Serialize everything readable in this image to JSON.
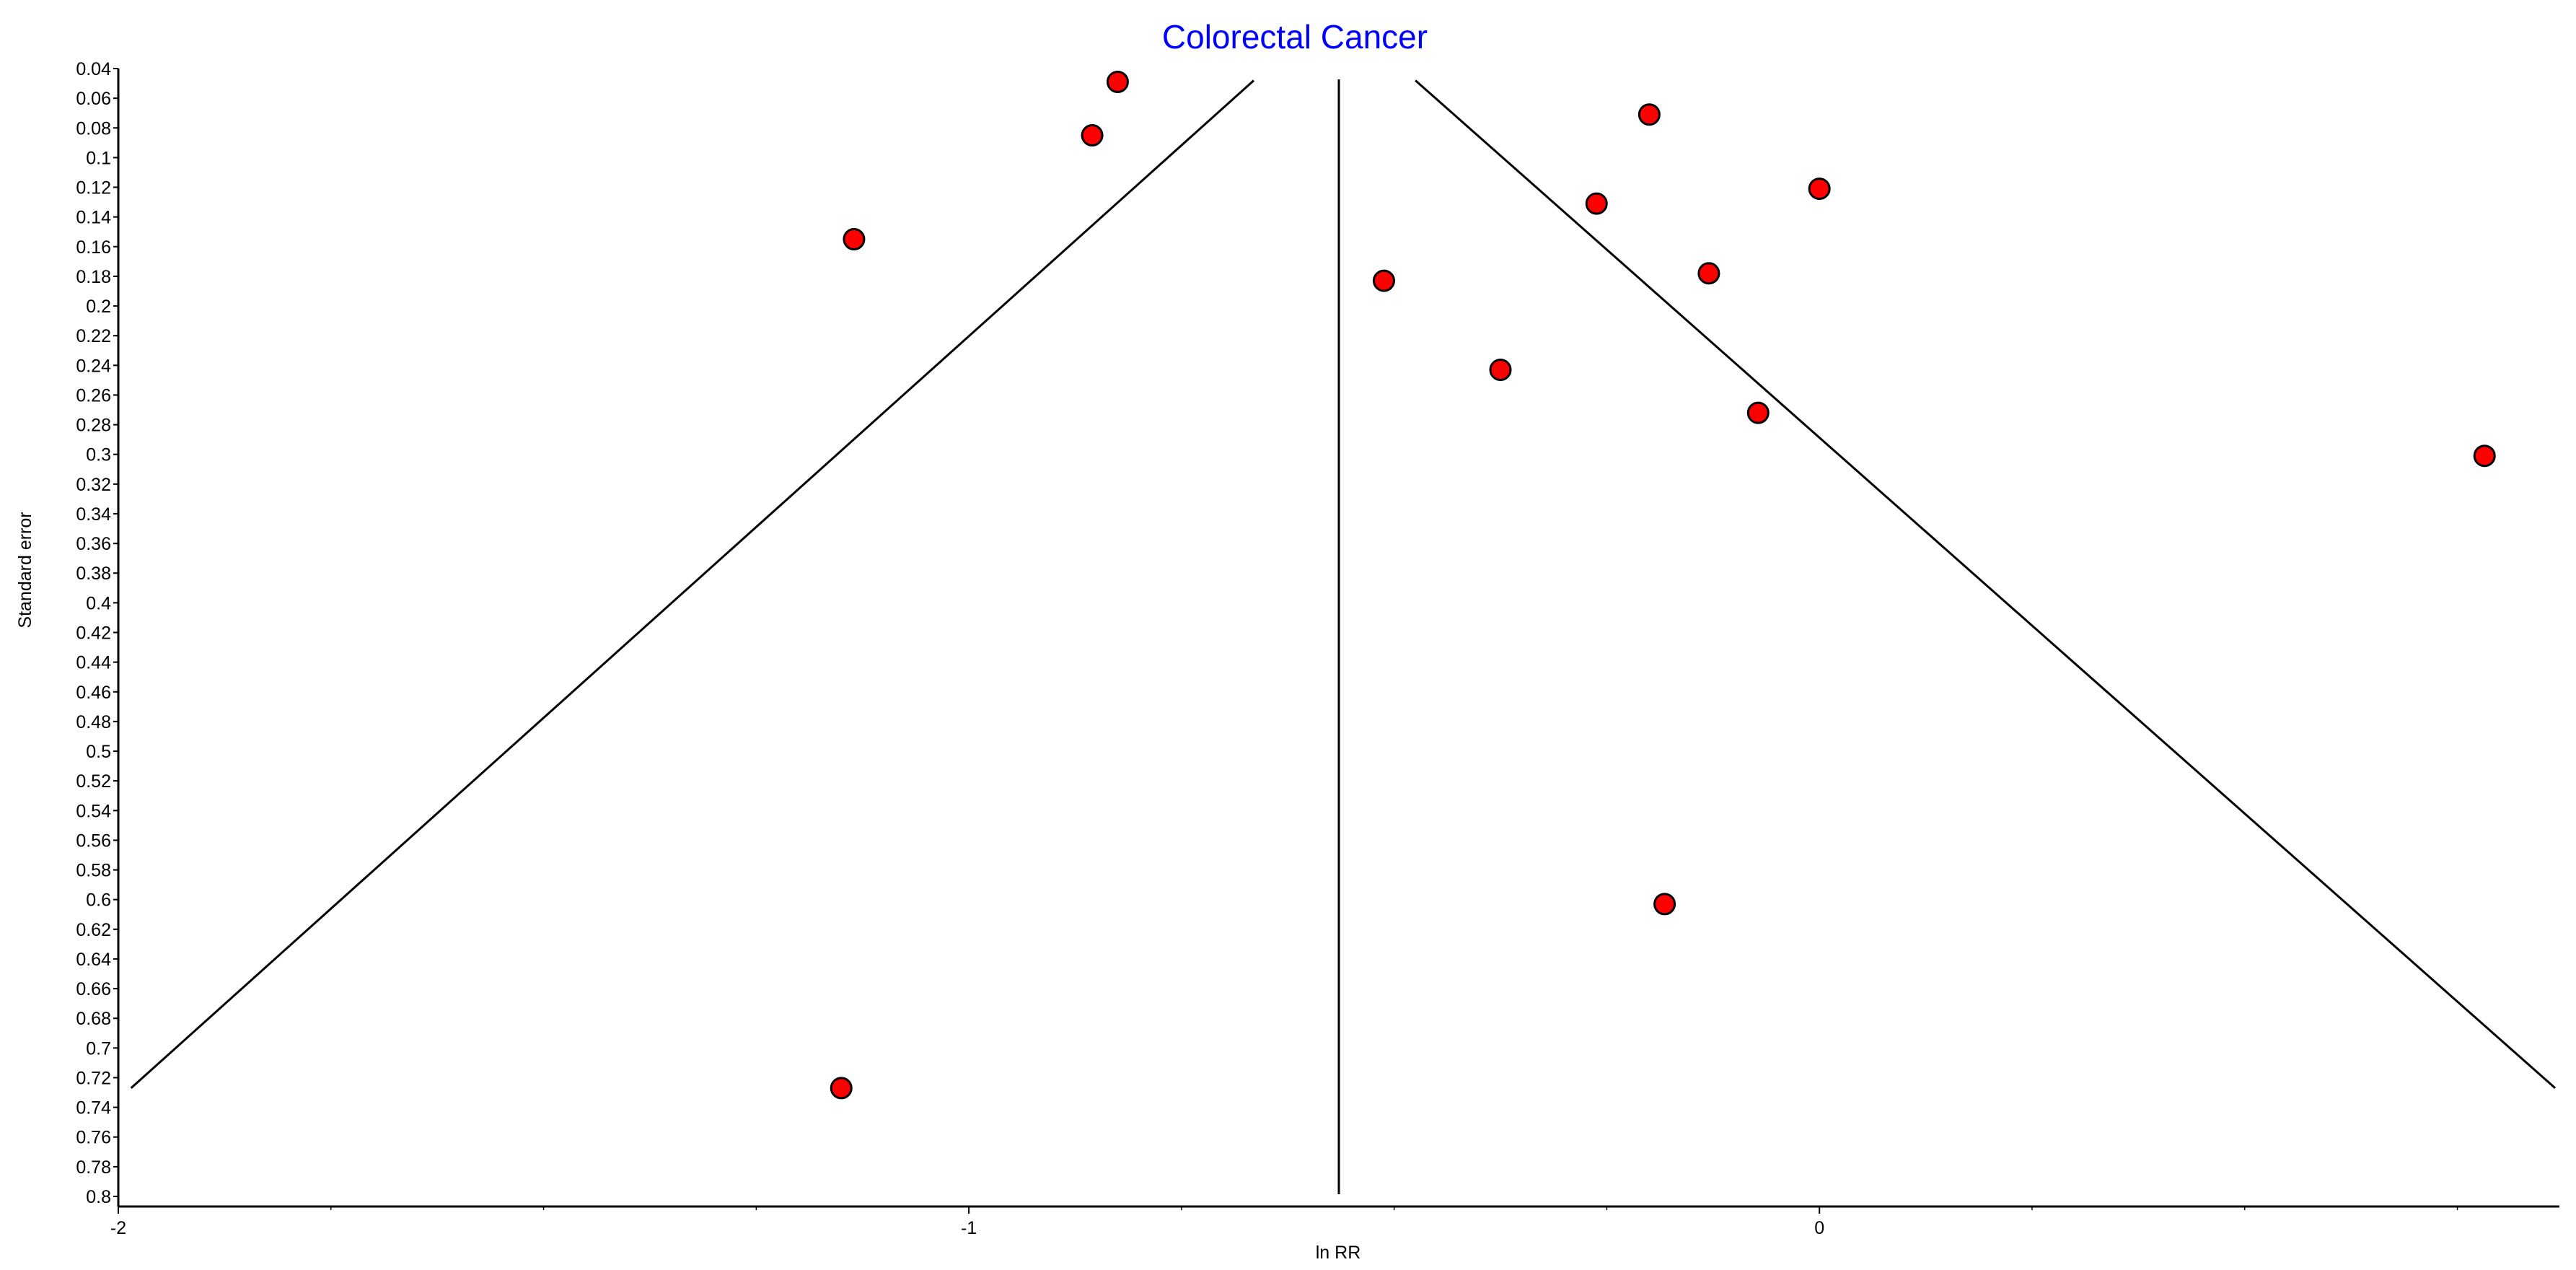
{
  "chart_data": {
    "type": "scatter",
    "title": "Colorectal Cancer",
    "xlabel": "ln RR",
    "ylabel": "Standard error",
    "xlim": [
      -2.0,
      0.87
    ],
    "ylim": [
      0.04,
      0.8
    ],
    "y_inverted": true,
    "grid": false,
    "x_tick_labels": [
      "-2",
      "-1",
      "0"
    ],
    "y_tick_labels": [
      "0.04",
      "0.06",
      "0.08",
      "0.1",
      "0.12",
      "0.14",
      "0.16",
      "0.18",
      "0.2",
      "0.22",
      "0.24",
      "0.26",
      "0.28",
      "0.3",
      "0.32",
      "0.34",
      "0.36",
      "0.38",
      "0.4",
      "0.42",
      "0.44",
      "0.46",
      "0.48",
      "0.5",
      "0.52",
      "0.54",
      "0.56",
      "0.58",
      "0.6",
      "0.62",
      "0.64",
      "0.66",
      "0.68",
      "0.7",
      "0.72",
      "0.74",
      "0.76",
      "0.78",
      "0.8"
    ],
    "pooled_estimate": -0.565,
    "funnel_lines": [
      {
        "x": [
          -0.665,
          -1.985
        ],
        "y": [
          0.048,
          0.727
        ]
      },
      {
        "x": [
          -0.475,
          0.865
        ],
        "y": [
          0.048,
          0.727
        ]
      }
    ],
    "points": [
      {
        "x": -0.825,
        "y": 0.049
      },
      {
        "x": -0.855,
        "y": 0.085
      },
      {
        "x": -1.135,
        "y": 0.155
      },
      {
        "x": -1.15,
        "y": 0.727
      },
      {
        "x": -0.2,
        "y": 0.071
      },
      {
        "x": 0.0,
        "y": 0.121
      },
      {
        "x": -0.262,
        "y": 0.131
      },
      {
        "x": -0.13,
        "y": 0.178
      },
      {
        "x": -0.512,
        "y": 0.183
      },
      {
        "x": -0.375,
        "y": 0.243
      },
      {
        "x": -0.072,
        "y": 0.272
      },
      {
        "x": 0.782,
        "y": 0.301
      },
      {
        "x": -0.182,
        "y": 0.603
      }
    ],
    "colors": {
      "title": "#0000ff",
      "marker_fill": "#ff0000",
      "marker_edge": "#000000",
      "lines": "#000000",
      "axis": "#000000"
    }
  }
}
